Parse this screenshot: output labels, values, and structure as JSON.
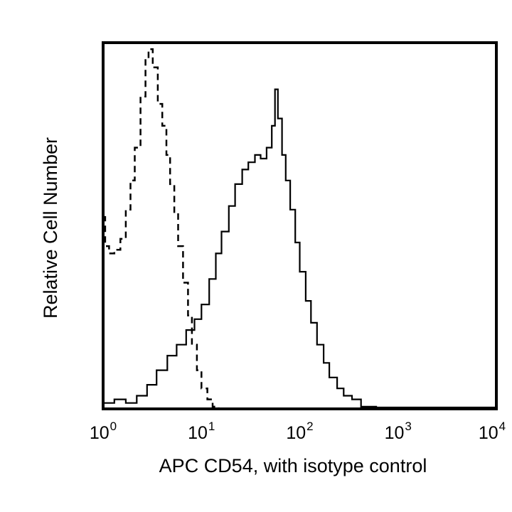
{
  "chart_data": {
    "type": "line",
    "subtype": "flow-cytometry-histogram",
    "title": "",
    "xlabel": "APC CD54, with isotype control",
    "ylabel": "Relative Cell Number",
    "xscale": "log",
    "xlim": [
      1,
      10000
    ],
    "x_ticks": [
      {
        "base": "10",
        "exp": "0",
        "value": 1
      },
      {
        "base": "10",
        "exp": "1",
        "value": 10
      },
      {
        "base": "10",
        "exp": "2",
        "value": 100
      },
      {
        "base": "10",
        "exp": "3",
        "value": 1000
      },
      {
        "base": "10",
        "exp": "4",
        "value": 10000
      }
    ],
    "ylim": [
      0,
      100
    ],
    "y_ticks": [],
    "grid": false,
    "legend": null,
    "series": [
      {
        "name": "Isotype control",
        "style": "dashed",
        "color": "#000000",
        "x": [
          1.0,
          1.05,
          1.15,
          1.3,
          1.5,
          1.7,
          1.9,
          2.1,
          2.4,
          2.7,
          2.9,
          3.2,
          3.6,
          4.0,
          4.4,
          4.8,
          5.3,
          5.8,
          6.5,
          7.3,
          8.0,
          9.0,
          10.0,
          11.5,
          13.0,
          15.0
        ],
        "y": [
          53,
          45,
          43,
          44,
          47,
          55,
          63,
          72,
          86,
          96,
          99,
          94,
          84,
          78,
          70,
          62,
          54,
          45,
          35,
          26,
          18,
          11,
          6,
          3,
          1,
          0
        ]
      },
      {
        "name": "CD54",
        "style": "solid",
        "color": "#000000",
        "x": [
          1.0,
          1.3,
          1.7,
          2.2,
          2.8,
          3.5,
          4.5,
          5.6,
          7.0,
          8.5,
          10.0,
          12.0,
          14.0,
          16.0,
          19.0,
          22.0,
          26.0,
          30.0,
          35.0,
          40.0,
          46.0,
          52.0,
          56.0,
          60.0,
          66.0,
          72.0,
          80.0,
          90.0,
          100.0,
          115.0,
          130.0,
          150.0,
          175.0,
          200.0,
          240.0,
          280.0,
          340.0,
          420.0,
          600.0,
          1000.0,
          3000.0,
          10000.0
        ],
        "y": [
          2,
          3,
          2,
          4,
          7,
          11,
          15,
          18,
          22,
          25,
          29,
          36,
          43,
          49,
          56,
          62,
          66,
          68,
          70,
          69,
          72,
          78,
          88,
          80,
          70,
          63,
          55,
          46,
          38,
          30,
          24,
          18,
          13,
          9,
          6,
          4,
          3,
          1,
          0.5,
          0,
          0.5,
          0
        ]
      }
    ]
  },
  "axes": {
    "x_title": "APC CD54, with isotype control",
    "y_title": "Relative Cell Number"
  }
}
